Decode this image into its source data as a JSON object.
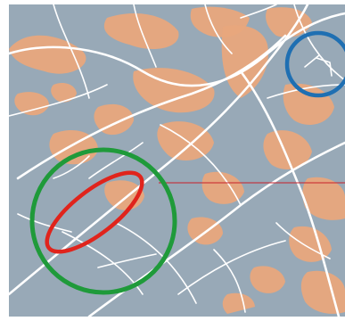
{
  "map": {
    "colors": {
      "frame": "#ffffff",
      "land": "#98a9b7",
      "builtup": "#e8a77c",
      "road": "#ffffff",
      "green_circle": "#1f9a3a",
      "red_ellipse": "#e0241c",
      "blue_circle": "#1f6fb2",
      "pointer_line": "#c8202a"
    },
    "annotations": [
      {
        "name": "green-circle-marker",
        "shape": "circle",
        "color": "green"
      },
      {
        "name": "red-ellipse-marker",
        "shape": "ellipse",
        "color": "red"
      },
      {
        "name": "blue-circle-marker",
        "shape": "circle",
        "color": "blue"
      },
      {
        "name": "red-pointer-line",
        "shape": "line",
        "color": "red"
      }
    ]
  }
}
